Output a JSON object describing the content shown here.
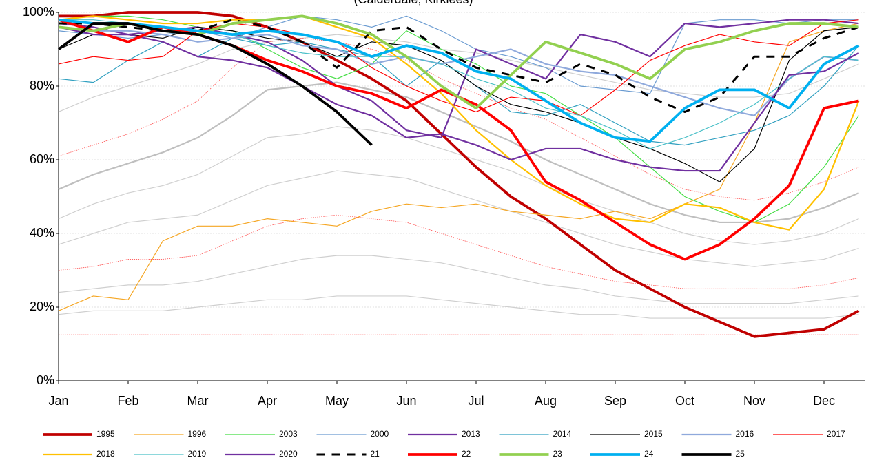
{
  "chart_data": {
    "type": "line",
    "title": "(Calderdale, Kirklees)",
    "categories": [
      "Jan",
      null,
      "Feb",
      null,
      "Mar",
      null,
      "Apr",
      null,
      "May",
      null,
      "Jun",
      null,
      "Jul",
      null,
      "Aug",
      null,
      "Sep",
      null,
      "Oct",
      null,
      "Nov",
      null,
      "Dec",
      null
    ],
    "ylim": [
      0,
      100
    ],
    "yticks": [
      {
        "value": 0,
        "label": "0%"
      },
      {
        "value": 20,
        "label": "20%"
      },
      {
        "value": 40,
        "label": "40%"
      },
      {
        "value": 60,
        "label": "60%"
      },
      {
        "value": 80,
        "label": "80%"
      },
      {
        "value": 100,
        "label": "100%"
      }
    ],
    "grid": true,
    "legend": "bottom",
    "reference_lines": [
      {
        "color": "#bfbfbf",
        "style": "medium",
        "values": [
          52,
          56,
          59,
          62,
          66,
          72,
          79,
          80,
          81,
          79,
          77,
          73,
          69,
          65,
          60,
          56,
          52,
          48,
          45,
          43,
          43,
          44,
          47,
          51
        ]
      },
      {
        "color": "#cfcfcf",
        "style": "thin",
        "values": [
          73,
          77,
          80,
          83,
          86,
          90,
          92,
          93,
          94,
          93,
          92,
          90,
          89,
          87,
          85,
          83,
          81,
          79,
          78,
          77,
          77,
          78,
          82,
          86
        ]
      },
      {
        "color": "#cfcfcf",
        "style": "thin",
        "values": [
          44,
          48,
          51,
          53,
          56,
          61,
          66,
          67,
          69,
          68,
          66,
          63,
          60,
          57,
          53,
          49,
          46,
          43,
          40,
          38,
          37,
          38,
          40,
          44
        ]
      },
      {
        "color": "#cfcfcf",
        "style": "thin",
        "values": [
          37,
          40,
          43,
          44,
          45,
          49,
          53,
          55,
          57,
          56,
          55,
          52,
          49,
          46,
          43,
          40,
          37,
          35,
          33,
          32,
          31,
          32,
          33,
          36
        ]
      },
      {
        "color": "#cfcfcf",
        "style": "thin",
        "values": [
          24,
          25,
          26,
          26,
          27,
          29,
          31,
          33,
          34,
          34,
          33,
          32,
          30,
          28,
          26,
          25,
          23,
          22,
          21,
          21,
          21,
          21,
          22,
          23
        ]
      },
      {
        "color": "#cfcfcf",
        "style": "thin",
        "values": [
          18,
          19,
          19,
          19,
          20,
          21,
          22,
          22,
          23,
          23,
          23,
          22,
          21,
          20,
          19,
          18,
          18,
          17,
          17,
          17,
          17,
          17,
          17,
          18
        ]
      },
      {
        "color": "#ff5050",
        "style": "dotted",
        "values": [
          61,
          64,
          67,
          71,
          76,
          85,
          92,
          93,
          92,
          90,
          87,
          82,
          78,
          74,
          71,
          66,
          61,
          56,
          52,
          50,
          49,
          51,
          54,
          58
        ]
      },
      {
        "color": "#ff5050",
        "style": "dotted",
        "values": [
          30,
          31,
          33,
          33,
          34,
          38,
          42,
          44,
          45,
          44,
          43,
          40,
          37,
          34,
          31,
          29,
          27,
          26,
          25,
          25,
          25,
          25,
          26,
          28
        ]
      },
      {
        "color": "#ff5050",
        "style": "dotted",
        "values": [
          12.5,
          12.5,
          12.5,
          12.5,
          12.5,
          12.5,
          12.5,
          12.5,
          12.5,
          12.5,
          12.5,
          12.5,
          12.5,
          12.5,
          12.5,
          12.5,
          12.5,
          12.5,
          12.5,
          12.5,
          12.5,
          12.5,
          12.5,
          12.5
        ]
      }
    ],
    "series": [
      {
        "name": "1995",
        "color": "#c00000",
        "style": "thick",
        "values": [
          99,
          99,
          100,
          100,
          100,
          99,
          96,
          92,
          87,
          82,
          76,
          67,
          58,
          50,
          44,
          37,
          30,
          25,
          20,
          16,
          12,
          13,
          14,
          19
        ]
      },
      {
        "name": "1996",
        "color": "#f5a623",
        "style": "thin",
        "values": [
          19,
          23,
          22,
          38,
          42,
          42,
          44,
          43,
          42,
          46,
          48,
          47,
          48,
          46,
          45,
          44,
          46,
          44,
          48,
          52,
          70,
          92,
          95,
          97
        ]
      },
      {
        "name": "2003",
        "color": "#44dd44",
        "style": "thin",
        "values": [
          98,
          99,
          99,
          98,
          96,
          95,
          90,
          85,
          82,
          86,
          95,
          90,
          86,
          80,
          78,
          72,
          66,
          58,
          50,
          46,
          43,
          48,
          58,
          72
        ]
      },
      {
        "name": "2000",
        "color": "#6a9bd1",
        "style": "thin",
        "values": [
          95,
          94,
          93,
          94,
          95,
          93,
          96,
          99,
          98,
          96,
          99,
          95,
          90,
          88,
          85,
          80,
          79,
          78,
          97,
          98,
          98,
          97,
          98,
          98
        ]
      },
      {
        "name": "2013",
        "color": "#7030a0",
        "style": "medium",
        "values": [
          97,
          96,
          94,
          95,
          96,
          94,
          92,
          87,
          80,
          76,
          68,
          66,
          90,
          86,
          82,
          94,
          92,
          88,
          97,
          96,
          97,
          98,
          98,
          97
        ]
      },
      {
        "name": "2014",
        "color": "#31a0c0",
        "style": "thin",
        "values": [
          82,
          81,
          87,
          92,
          88,
          93,
          91,
          92,
          90,
          88,
          80,
          87,
          80,
          73,
          72,
          75,
          70,
          65,
          64,
          66,
          68,
          72,
          80,
          91
        ]
      },
      {
        "name": "2015",
        "color": "#000000",
        "style": "thin",
        "values": [
          90,
          94,
          94,
          93,
          96,
          95,
          93,
          92,
          88,
          92,
          91,
          87,
          80,
          75,
          73,
          70,
          66,
          63,
          59,
          54,
          63,
          87,
          95,
          96
        ]
      },
      {
        "name": "2016",
        "color": "#8fa9dc",
        "style": "medium",
        "values": [
          96,
          95,
          95,
          94,
          92,
          93,
          94,
          91,
          90,
          86,
          88,
          86,
          88,
          90,
          86,
          84,
          83,
          80,
          77,
          74,
          72,
          82,
          88,
          87
        ]
      },
      {
        "name": "2017",
        "color": "#ff0000",
        "style": "thin",
        "values": [
          86,
          88,
          87,
          88,
          95,
          97,
          96,
          94,
          92,
          85,
          80,
          76,
          73,
          77,
          76,
          72,
          79,
          87,
          91,
          94,
          92,
          91,
          97,
          98
        ]
      },
      {
        "name": "2018",
        "color": "#ffc000",
        "style": "medium",
        "values": [
          98,
          99,
          98,
          97,
          97,
          98,
          98,
          99,
          96,
          93,
          86,
          78,
          68,
          60,
          53,
          48,
          44,
          43,
          48,
          47,
          43,
          41,
          52,
          76
        ]
      },
      {
        "name": "2019",
        "color": "#4bc0c8",
        "style": "thin",
        "values": [
          98,
          98,
          97,
          96,
          95,
          94,
          91,
          89,
          88,
          88,
          88,
          86,
          82,
          79,
          74,
          72,
          68,
          63,
          66,
          70,
          75,
          82,
          88,
          87
        ]
      },
      {
        "name": "2020",
        "color": "#7030a0",
        "style": "medium",
        "values": [
          96,
          94,
          94,
          92,
          88,
          87,
          85,
          80,
          75,
          72,
          66,
          67,
          64,
          60,
          63,
          63,
          60,
          58,
          57,
          57,
          70,
          83,
          84,
          89
        ]
      },
      {
        "name": "21",
        "color": "#000000",
        "style": "dashed",
        "values": [
          97,
          97,
          96,
          95,
          95,
          98,
          96,
          92,
          85,
          95,
          96,
          90,
          85,
          83,
          81,
          86,
          83,
          77,
          73,
          77,
          88,
          88,
          93,
          96
        ]
      },
      {
        "name": "22",
        "color": "#ff0000",
        "style": "thick",
        "values": [
          98,
          95,
          92,
          96,
          94,
          91,
          87,
          84,
          80,
          78,
          74,
          79,
          75,
          68,
          54,
          49,
          43,
          37,
          33,
          37,
          44,
          53,
          74,
          76
        ]
      },
      {
        "name": "23",
        "color": "#92d050",
        "style": "thick",
        "values": [
          96,
          95,
          97,
          95,
          94,
          97,
          98,
          99,
          97,
          94,
          88,
          80,
          74,
          83,
          92,
          89,
          86,
          82,
          90,
          92,
          95,
          97,
          97,
          96
        ]
      },
      {
        "name": "24",
        "color": "#00b0f0",
        "style": "thick",
        "values": [
          98,
          97,
          97,
          96,
          95,
          94,
          95,
          94,
          92,
          88,
          91,
          89,
          84,
          82,
          76,
          70,
          66,
          65,
          74,
          79,
          79,
          74,
          86,
          91
        ]
      },
      {
        "name": "25",
        "color": "#000000",
        "style": "thick",
        "values": [
          90,
          97,
          97,
          95,
          94,
          91,
          86,
          80,
          73,
          64,
          null,
          null,
          null,
          null,
          null,
          null,
          null,
          null,
          null,
          null,
          null,
          null,
          null,
          null
        ]
      }
    ]
  }
}
